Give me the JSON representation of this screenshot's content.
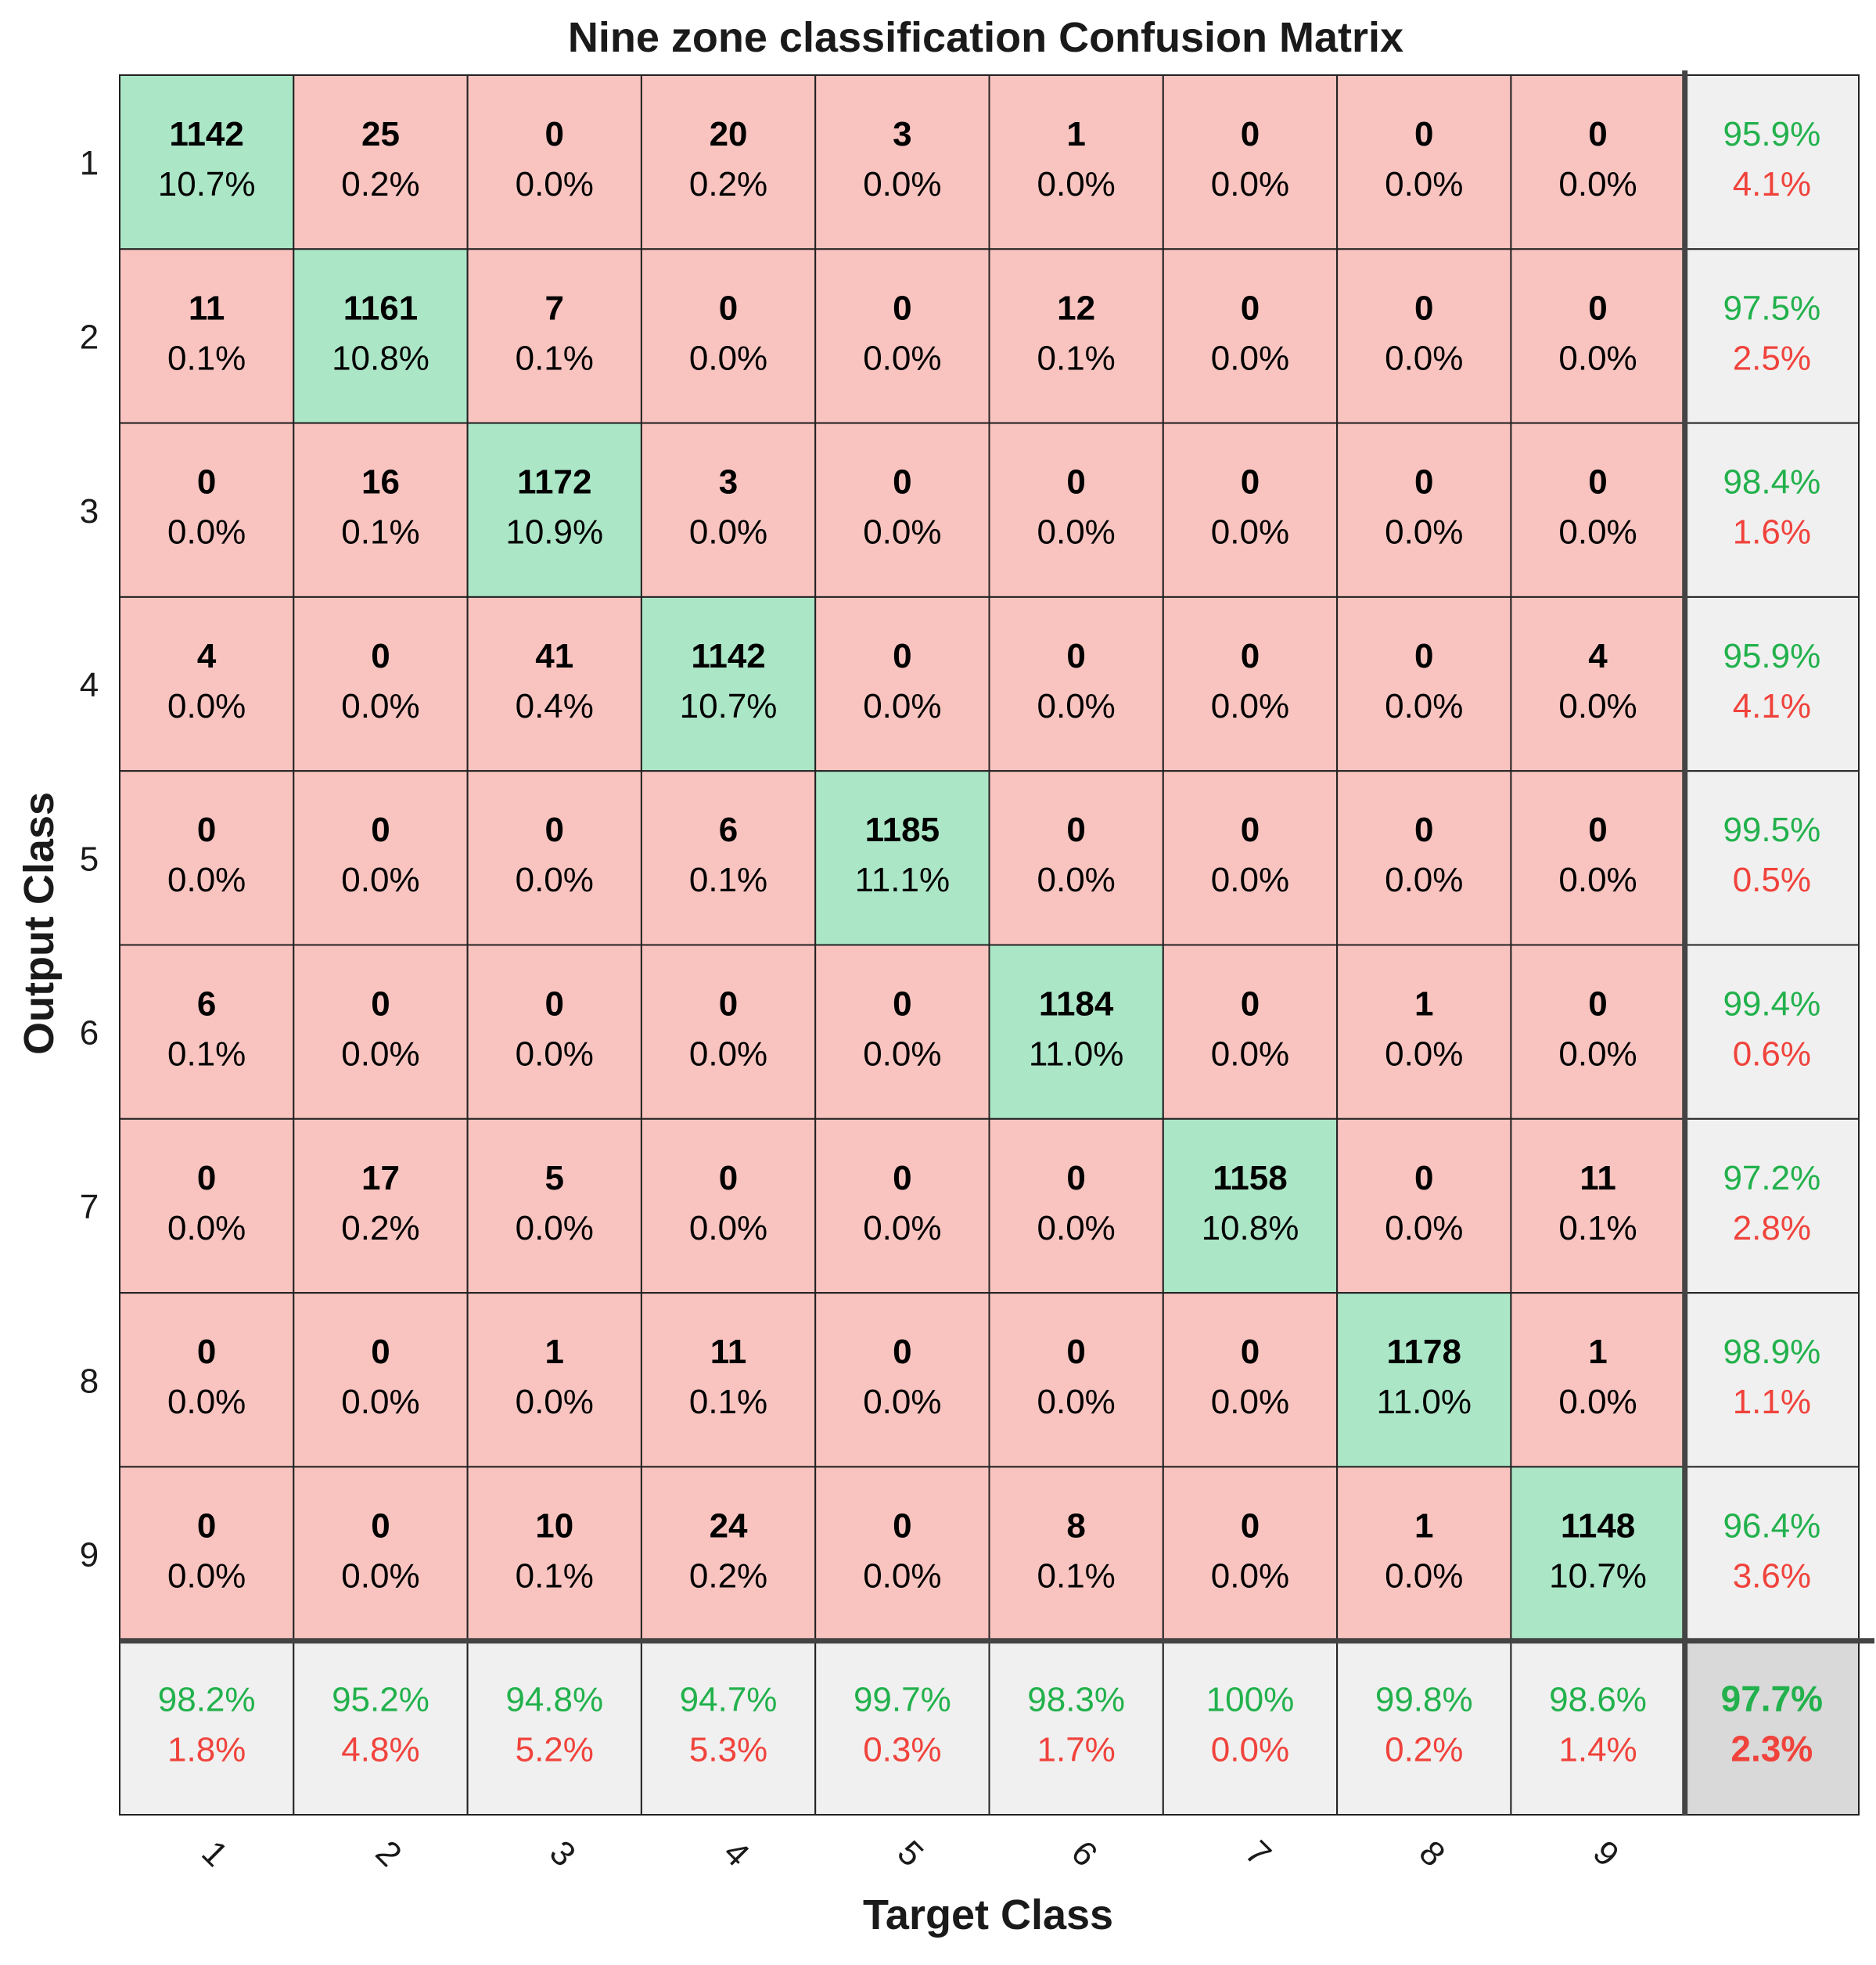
{
  "chart_data": {
    "type": "heatmap",
    "title": "Nine zone classification Confusion Matrix",
    "xlabel": "Target Class",
    "ylabel": "Output Class",
    "x_tick_labels": [
      "1",
      "2",
      "3",
      "4",
      "5",
      "6",
      "7",
      "8",
      "9"
    ],
    "y_tick_labels": [
      "1",
      "2",
      "3",
      "4",
      "5",
      "6",
      "7",
      "8",
      "9"
    ],
    "counts": [
      [
        1142,
        25,
        0,
        20,
        3,
        1,
        0,
        0,
        0
      ],
      [
        11,
        1161,
        7,
        0,
        0,
        12,
        0,
        0,
        0
      ],
      [
        0,
        16,
        1172,
        3,
        0,
        0,
        0,
        0,
        0
      ],
      [
        4,
        0,
        41,
        1142,
        0,
        0,
        0,
        0,
        4
      ],
      [
        0,
        0,
        0,
        6,
        1185,
        0,
        0,
        0,
        0
      ],
      [
        6,
        0,
        0,
        0,
        0,
        1184,
        0,
        1,
        0
      ],
      [
        0,
        17,
        5,
        0,
        0,
        0,
        1158,
        0,
        11
      ],
      [
        0,
        0,
        1,
        11,
        0,
        0,
        0,
        1178,
        1
      ],
      [
        0,
        0,
        10,
        24,
        0,
        8,
        0,
        1,
        1148
      ]
    ],
    "percents": [
      [
        "10.7%",
        "0.2%",
        "0.0%",
        "0.2%",
        "0.0%",
        "0.0%",
        "0.0%",
        "0.0%",
        "0.0%"
      ],
      [
        "0.1%",
        "10.8%",
        "0.1%",
        "0.0%",
        "0.0%",
        "0.1%",
        "0.0%",
        "0.0%",
        "0.0%"
      ],
      [
        "0.0%",
        "0.1%",
        "10.9%",
        "0.0%",
        "0.0%",
        "0.0%",
        "0.0%",
        "0.0%",
        "0.0%"
      ],
      [
        "0.0%",
        "0.0%",
        "0.4%",
        "10.7%",
        "0.0%",
        "0.0%",
        "0.0%",
        "0.0%",
        "0.0%"
      ],
      [
        "0.0%",
        "0.0%",
        "0.0%",
        "0.1%",
        "11.1%",
        "0.0%",
        "0.0%",
        "0.0%",
        "0.0%"
      ],
      [
        "0.1%",
        "0.0%",
        "0.0%",
        "0.0%",
        "0.0%",
        "11.0%",
        "0.0%",
        "0.0%",
        "0.0%"
      ],
      [
        "0.0%",
        "0.2%",
        "0.0%",
        "0.0%",
        "0.0%",
        "0.0%",
        "10.8%",
        "0.0%",
        "0.1%"
      ],
      [
        "0.0%",
        "0.0%",
        "0.0%",
        "0.1%",
        "0.0%",
        "0.0%",
        "0.0%",
        "11.0%",
        "0.0%"
      ],
      [
        "0.0%",
        "0.0%",
        "0.1%",
        "0.2%",
        "0.0%",
        "0.1%",
        "0.0%",
        "0.0%",
        "10.7%"
      ]
    ],
    "row_summary": [
      [
        "95.9%",
        "4.1%"
      ],
      [
        "97.5%",
        "2.5%"
      ],
      [
        "98.4%",
        "1.6%"
      ],
      [
        "95.9%",
        "4.1%"
      ],
      [
        "99.5%",
        "0.5%"
      ],
      [
        "99.4%",
        "0.6%"
      ],
      [
        "97.2%",
        "2.8%"
      ],
      [
        "98.9%",
        "1.1%"
      ],
      [
        "96.4%",
        "3.6%"
      ]
    ],
    "col_summary": [
      [
        "98.2%",
        "1.8%"
      ],
      [
        "95.2%",
        "4.8%"
      ],
      [
        "94.8%",
        "5.2%"
      ],
      [
        "94.7%",
        "5.3%"
      ],
      [
        "99.7%",
        "0.3%"
      ],
      [
        "98.3%",
        "1.7%"
      ],
      [
        "100%",
        "0.0%"
      ],
      [
        "99.8%",
        "0.2%"
      ],
      [
        "98.6%",
        "1.4%"
      ]
    ],
    "overall": [
      "97.7%",
      "2.3%"
    ],
    "colors": {
      "correct_cell": "#abe6c7",
      "wrong_cell": "#f9c4c0",
      "summary_cell": "#f0f0f0",
      "overall_cell": "#d9d9d9",
      "accuracy_text": "#22b14c",
      "error_text": "#f0433c",
      "grid_line": "#222222"
    }
  }
}
